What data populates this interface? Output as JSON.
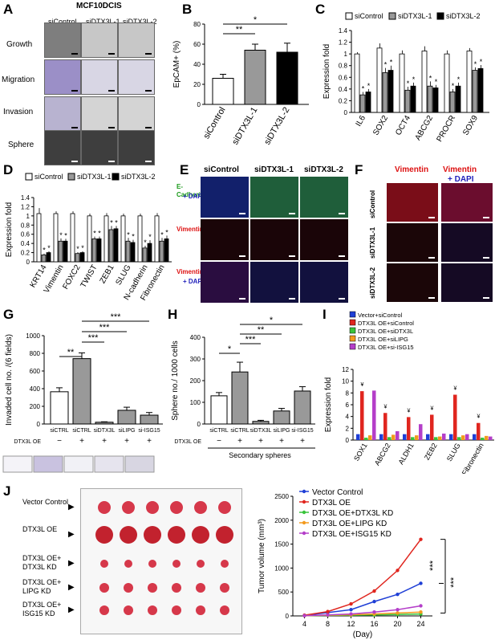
{
  "panelA": {
    "letter": "A",
    "title": "MCF10DCIS",
    "cols": [
      "siControl",
      "siDTX3L-1",
      "siDTX3L-2"
    ],
    "rows": [
      "Growth",
      "Migration",
      "Invasion",
      "Sphere"
    ]
  },
  "panelB": {
    "letter": "B",
    "chart_data": {
      "type": "bar",
      "categories": [
        "siControl",
        "siDTX3L-1",
        "siDTX3L-2"
      ],
      "values": [
        26,
        54,
        52
      ],
      "errors": [
        4,
        6,
        9
      ],
      "ylabel": "EpCAM+ (%)",
      "ylim": [
        0,
        80
      ],
      "yticks": [
        0,
        20,
        40,
        60,
        80
      ],
      "fills": [
        "#ffffff",
        "#999999",
        "#000000"
      ],
      "sig": [
        {
          "from": 0,
          "to": 1,
          "label": "**"
        },
        {
          "from": 0,
          "to": 2,
          "label": "*"
        }
      ]
    }
  },
  "panelC": {
    "letter": "C",
    "legend": [
      "siControl",
      "siDTX3L-1",
      "siDTX3L-2"
    ],
    "chart_data": {
      "type": "bar",
      "categories": [
        "IL6",
        "SOX2",
        "OCT4",
        "ABCG2",
        "PROCR",
        "SOX9"
      ],
      "ylabel": "Expression fold",
      "ylim": [
        0,
        1.4
      ],
      "yticks": [
        0,
        0.2,
        0.4,
        0.6,
        0.8,
        1.0,
        1.2,
        1.4
      ],
      "series": [
        {
          "name": "siControl",
          "values": [
            1.0,
            1.1,
            1.0,
            1.05,
            1.0,
            1.05
          ],
          "errors": [
            0.03,
            0.08,
            0.06,
            0.08,
            0.06,
            0.05
          ]
        },
        {
          "name": "siDTX3L-1",
          "values": [
            0.3,
            0.68,
            0.38,
            0.45,
            0.35,
            0.72
          ],
          "errors": [
            0.05,
            0.08,
            0.06,
            0.08,
            0.05,
            0.05
          ]
        },
        {
          "name": "siDTX3L-2",
          "values": [
            0.35,
            0.72,
            0.45,
            0.42,
            0.45,
            0.75
          ],
          "errors": [
            0.05,
            0.08,
            0.06,
            0.05,
            0.06,
            0.06
          ]
        }
      ],
      "marks": [
        "**",
        "**",
        "**",
        "**",
        "**",
        "**"
      ]
    }
  },
  "panelD": {
    "letter": "D",
    "legend": [
      "siControl",
      "siDTX3L-1",
      "siDTX3L-2"
    ],
    "chart_data": {
      "type": "bar",
      "categories": [
        "KRT14",
        "Vimentin",
        "FOXC2",
        "TWIST",
        "ZEB1",
        "SLUG",
        "N-cadherin",
        "Fibronectin"
      ],
      "ylabel": "Expression fold",
      "ylim": [
        0,
        1.4
      ],
      "yticks": [
        0,
        0.2,
        0.4,
        0.6,
        0.8,
        1.0,
        1.2,
        1.4
      ],
      "series": [
        {
          "name": "siControl",
          "values": [
            1.05,
            1.05,
            1.05,
            1.0,
            1.0,
            1.0,
            1.0,
            1.0
          ],
          "errors": [
            0.12,
            0.05,
            0.05,
            0.05,
            0.06,
            0.05,
            0.05,
            0.06
          ]
        },
        {
          "name": "siDTX3L-1",
          "values": [
            0.15,
            0.45,
            0.18,
            0.5,
            0.7,
            0.45,
            0.3,
            0.45
          ],
          "errors": [
            0.03,
            0.06,
            0.03,
            0.05,
            0.08,
            0.07,
            0.05,
            0.07
          ]
        },
        {
          "name": "siDTX3L-2",
          "values": [
            0.2,
            0.45,
            0.2,
            0.5,
            0.72,
            0.42,
            0.4,
            0.5
          ],
          "errors": [
            0.03,
            0.05,
            0.03,
            0.05,
            0.06,
            0.06,
            0.07,
            0.07
          ]
        }
      ],
      "marks": [
        "**",
        "**",
        "**",
        "**",
        "**",
        "**",
        "**",
        "**"
      ]
    }
  },
  "panelE": {
    "letter": "E",
    "cols": [
      "siControl",
      "siDTX3L-1",
      "siDTX3L-2"
    ],
    "rows": [
      {
        "a": "E-Cadherin",
        "b": "+ DAPI"
      },
      {
        "a": "Vimentin",
        "b": ""
      },
      {
        "a": "Vimentin",
        "b": "+ DAPI"
      }
    ]
  },
  "panelF": {
    "letter": "F",
    "cols": [
      "Vimentin",
      "Vimentin"
    ],
    "col2b": "+ DAPI",
    "rows": [
      "siControl",
      "siDTX3L-1",
      "siDTX3L-2"
    ]
  },
  "panelG": {
    "letter": "G",
    "chart_data": {
      "type": "bar",
      "categories": [
        "siCTRL",
        "siCTRL",
        "siDTX3L",
        "siLIPG",
        "si-ISG15"
      ],
      "values": [
        365,
        740,
        20,
        155,
        100
      ],
      "errors": [
        45,
        65,
        5,
        35,
        30
      ],
      "ylabel": "Invaded cell no. /(6 fields)",
      "ylim": [
        0,
        1000
      ],
      "yticks": [
        0,
        200,
        400,
        600,
        800,
        1000
      ],
      "fills": [
        "#ffffff",
        "#999999",
        "#999999",
        "#999999",
        "#999999"
      ],
      "oe_label": "DTX3L OE",
      "oe": [
        "−",
        "+",
        "+",
        "+",
        "+"
      ],
      "sig": [
        {
          "from": 0,
          "to": 1,
          "label": "**"
        },
        {
          "from": 1,
          "to": 2,
          "label": "***"
        },
        {
          "from": 1,
          "to": 3,
          "label": "***"
        },
        {
          "from": 1,
          "to": 4,
          "label": "***"
        }
      ]
    }
  },
  "panelH": {
    "letter": "H",
    "chart_data": {
      "type": "bar",
      "categories": [
        "siCTRL",
        "siCTRL",
        "siDTX3L",
        "siLIPG",
        "si-ISG15"
      ],
      "values": [
        130,
        240,
        12,
        60,
        152
      ],
      "errors": [
        15,
        45,
        5,
        12,
        20
      ],
      "ylabel": "Sphere no./ 1000 cells",
      "ylim": [
        0,
        400
      ],
      "yticks": [
        0,
        100,
        200,
        300,
        400
      ],
      "fills": [
        "#ffffff",
        "#999999",
        "#999999",
        "#999999",
        "#999999"
      ],
      "oe_label": "DTX3L OE",
      "oe": [
        "−",
        "+",
        "+",
        "+",
        "+"
      ],
      "footer": "Secondary spheres",
      "sig": [
        {
          "from": 0,
          "to": 1,
          "label": "*"
        },
        {
          "from": 1,
          "to": 2,
          "label": "***"
        },
        {
          "from": 1,
          "to": 3,
          "label": "**"
        },
        {
          "from": 1,
          "to": 4,
          "label": "*"
        }
      ]
    }
  },
  "panelI": {
    "letter": "I",
    "legend": [
      "Vector+siControl",
      "DTX3L OE+siControl",
      "DTX3L OE+siDTX3L",
      "DTX3L OE+siLIPG",
      "DTX3L OE+si-ISG15"
    ],
    "colors": [
      "#1f3fd6",
      "#e0261f",
      "#38c43a",
      "#f39a1e",
      "#b43ec9"
    ],
    "chart_data": {
      "type": "bar",
      "categories": [
        "SOX1",
        "ABCG2",
        "ALDH1",
        "ZEB2",
        "SLUG",
        "Fibronectin"
      ],
      "ylabel": "Expression fold",
      "ylim": [
        0,
        12
      ],
      "yticks": [
        0,
        2,
        4,
        6,
        8,
        10,
        12
      ],
      "series": [
        {
          "name": "Vector+siControl",
          "values": [
            1,
            1,
            1,
            1,
            1,
            1
          ]
        },
        {
          "name": "DTX3L OE+siControl",
          "values": [
            8.3,
            4.6,
            3.9,
            4.3,
            7.7,
            2.9
          ]
        },
        {
          "name": "DTX3L OE+siDTX3L",
          "values": [
            0.4,
            0.5,
            0.5,
            0.5,
            0.5,
            0.4
          ]
        },
        {
          "name": "DTX3L OE+siLIPG",
          "values": [
            0.8,
            0.9,
            0.8,
            0.6,
            0.8,
            0.7
          ]
        },
        {
          "name": "DTX3L OE+si-ISG15",
          "values": [
            8.4,
            1.5,
            2.7,
            1.1,
            1.0,
            0.6
          ]
        }
      ],
      "marks_top": [
        "¥",
        "¥",
        "¥",
        "¥",
        "¥",
        "¥"
      ]
    }
  },
  "panelJ": {
    "letter": "J",
    "photo_rows": [
      "Vector Control",
      "DTX3L OE",
      "DTX3L OE+\nDTX3L KD",
      "DTX3L OE+\nLIPG KD",
      "DTX3L OE+\nISG15 KD"
    ],
    "legend": [
      "Vector Control",
      "DTX3L OE",
      "DTX3L OE+DTX3L KD",
      "DTX3L OE+LIPG KD",
      "DTX3L OE+ISG15 KD"
    ],
    "colors": [
      "#1f3fd6",
      "#e0261f",
      "#38c43a",
      "#f39a1e",
      "#b43ec9"
    ],
    "chart_data": {
      "type": "line",
      "x": [
        4,
        8,
        12,
        16,
        20,
        24
      ],
      "xlabel": "(Day)",
      "ylabel": "Tumor volume (mm³)",
      "ylim": [
        0,
        2500
      ],
      "yticks": [
        0,
        500,
        1000,
        1500,
        2000,
        2500
      ],
      "series": [
        {
          "name": "Vector Control",
          "values": [
            10,
            70,
            130,
            300,
            450,
            680
          ]
        },
        {
          "name": "DTX3L OE",
          "values": [
            15,
            90,
            250,
            520,
            950,
            1600
          ]
        },
        {
          "name": "DTX3L OE+DTX3L KD",
          "values": [
            5,
            10,
            15,
            20,
            30,
            40
          ]
        },
        {
          "name": "DTX3L OE+LIPG KD",
          "values": [
            5,
            15,
            25,
            40,
            60,
            80
          ]
        },
        {
          "name": "DTX3L OE+ISG15 KD",
          "values": [
            5,
            20,
            40,
            80,
            130,
            210
          ]
        }
      ],
      "sig": [
        "***",
        "***"
      ]
    }
  }
}
